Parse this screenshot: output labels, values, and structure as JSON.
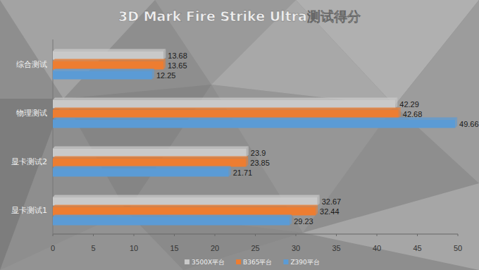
{
  "chart_data": {
    "type": "bar",
    "orientation": "horizontal",
    "title": "3D Mark Fire Strike Ultra测试得分",
    "categories": [
      "综合测试",
      "物理测试",
      "显卡测试2",
      "显卡测试1"
    ],
    "series": [
      {
        "name": "3500X平台",
        "color": "#c9c9c9",
        "values": [
          13.68,
          42.29,
          23.9,
          32.67
        ]
      },
      {
        "name": "B365平台",
        "color": "#ed7d31",
        "values": [
          13.65,
          42.68,
          23.85,
          32.44
        ]
      },
      {
        "name": "Z390平台",
        "color": "#5b9bd5",
        "values": [
          12.25,
          49.66,
          21.71,
          29.23
        ]
      }
    ],
    "xlim": [
      0,
      50
    ],
    "xticks": [
      0,
      5,
      10,
      15,
      20,
      25,
      30,
      35,
      40,
      45,
      50
    ],
    "grid": false,
    "legend": "bottom",
    "data_labels": true
  }
}
